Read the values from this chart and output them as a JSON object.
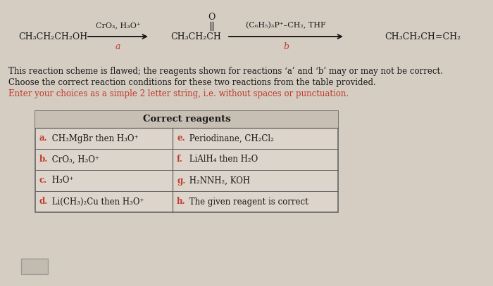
{
  "bg_color": "#d6cdc2",
  "title_lines": [
    "This reaction scheme is flawed; the reagents shown for reactions ‘a’ and ‘b’ may or may not be correct.",
    "Choose the correct reaction conditions for these two reactions from the table provided."
  ],
  "red_line": "Enter your choices as a simple 2 letter string, i.e. without spaces or punctuation.",
  "reaction": {
    "reactant": "CH₃CH₂CH₂OH",
    "reagent_a": "CrO₃, H₃O⁺",
    "label_a": "a",
    "intermediate": "CH₃CH₂CH",
    "intermediate_O": "O",
    "reagent_b": "(C₆H₅)₃P⁺–CH₂, THF",
    "label_b": "b",
    "product": "CH₃CH₂CH=CH₂"
  },
  "table": {
    "header": "Correct reagents",
    "col1_labels": [
      "a.",
      "b.",
      "c.",
      "d."
    ],
    "col1_text": [
      " CH₃MgBr then H₃O⁺",
      " CrO₃, H₃O⁺",
      " H₃O⁺",
      " Li(CH₃)₂Cu then H₃O⁺"
    ],
    "col2_labels": [
      "e.",
      "f.",
      "g.",
      "h."
    ],
    "col2_text": [
      " Periodinane, CH₂Cl₂",
      " LiAlH₄ then H₂O",
      " H₂NNH₂, KOH",
      " The given reagent is correct"
    ]
  },
  "text_color": "#1a1a1a",
  "red_color": "#c0392b",
  "label_color": "#c0392b",
  "table_bg": "#ddd5cb",
  "table_header_bg": "#c8bfb4",
  "table_border": "#666666"
}
